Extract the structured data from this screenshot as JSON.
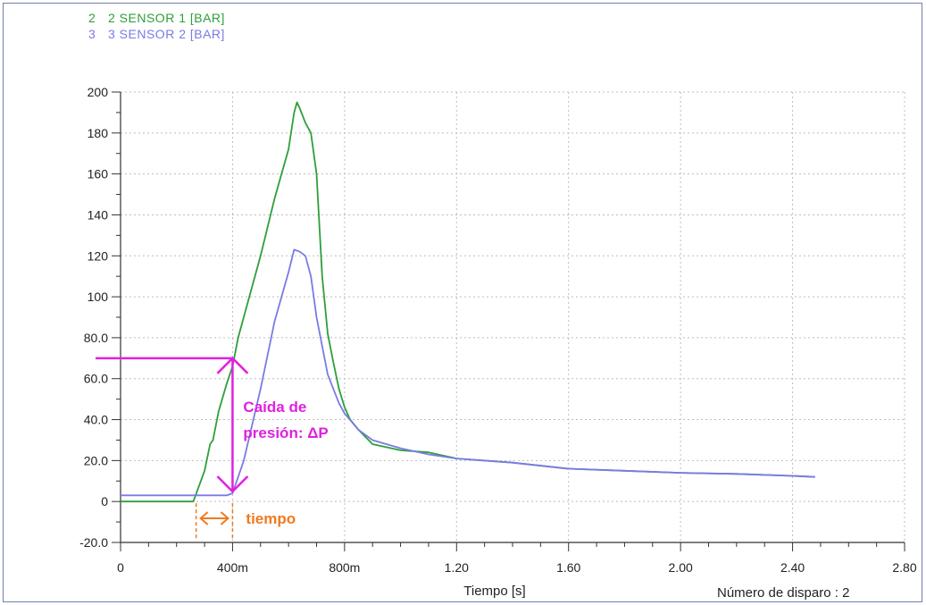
{
  "legend": [
    {
      "number": "2",
      "label": "2 SENSOR 1 [BAR]",
      "color": "#2e9e3a"
    },
    {
      "number": "3",
      "label": "3 SENSOR 2 [BAR]",
      "color": "#7a7ae6"
    }
  ],
  "footer": {
    "shot_label": "Número de disparo : 2"
  },
  "annotations": {
    "pressure_drop_line1": "Caída de",
    "pressure_drop_line2": "presión: ΔP",
    "time_label": "tiempo",
    "pressure_color": "#e020e0",
    "time_color": "#f07a20"
  },
  "chart_data": {
    "type": "line",
    "xlabel": "Tiempo [s]",
    "ylabel": "",
    "xlim": [
      0,
      2.8
    ],
    "ylim": [
      -20,
      200
    ],
    "grid": true,
    "x_ticks": [
      {
        "value": 0,
        "label": "0"
      },
      {
        "value": 0.4,
        "label": "400m"
      },
      {
        "value": 0.8,
        "label": "800m"
      },
      {
        "value": 1.2,
        "label": "1.20"
      },
      {
        "value": 1.6,
        "label": "1.60"
      },
      {
        "value": 2.0,
        "label": "2.00"
      },
      {
        "value": 2.4,
        "label": "2.40"
      },
      {
        "value": 2.8,
        "label": "2.80"
      }
    ],
    "y_ticks": [
      {
        "value": 200,
        "label": "200"
      },
      {
        "value": 180,
        "label": "180"
      },
      {
        "value": 160,
        "label": "160"
      },
      {
        "value": 140,
        "label": "140"
      },
      {
        "value": 120,
        "label": "120"
      },
      {
        "value": 100,
        "label": "100"
      },
      {
        "value": 80,
        "label": "80.0"
      },
      {
        "value": 60,
        "label": "60.0"
      },
      {
        "value": 40,
        "label": "40.0"
      },
      {
        "value": 20,
        "label": "20.0"
      },
      {
        "value": 0,
        "label": "0"
      },
      {
        "value": -20,
        "label": "-20.0"
      }
    ],
    "series": [
      {
        "name": "2 SENSOR 1 [BAR]",
        "color": "#2e9e3a",
        "x": [
          0,
          0.1,
          0.15,
          0.2,
          0.26,
          0.3,
          0.32,
          0.33,
          0.35,
          0.38,
          0.4,
          0.42,
          0.45,
          0.5,
          0.55,
          0.6,
          0.62,
          0.63,
          0.64,
          0.66,
          0.68,
          0.7,
          0.72,
          0.74,
          0.76,
          0.78,
          0.8,
          0.82,
          0.85,
          0.9,
          1.0,
          1.1,
          1.2,
          1.4,
          1.6,
          1.8,
          2.0,
          2.2,
          2.4,
          2.48
        ],
        "y": [
          0,
          0,
          0,
          0,
          0,
          15,
          28,
          30,
          44,
          58,
          66,
          80,
          95,
          120,
          148,
          172,
          190,
          195,
          192,
          185,
          180,
          160,
          110,
          82,
          68,
          55,
          46,
          40,
          35,
          28,
          25,
          24,
          21,
          19,
          16,
          15,
          14,
          13.5,
          12.5,
          12
        ]
      },
      {
        "name": "3 SENSOR 2 [BAR]",
        "color": "#7a7ae6",
        "x": [
          0,
          0.1,
          0.2,
          0.3,
          0.38,
          0.4,
          0.44,
          0.5,
          0.55,
          0.6,
          0.62,
          0.64,
          0.66,
          0.68,
          0.7,
          0.74,
          0.78,
          0.8,
          0.85,
          0.9,
          1.0,
          1.1,
          1.2,
          1.4,
          1.6,
          1.8,
          2.0,
          2.2,
          2.4,
          2.48
        ],
        "y": [
          3,
          3,
          3,
          3,
          3,
          4,
          20,
          55,
          88,
          112,
          123,
          122,
          120,
          110,
          90,
          62,
          48,
          43,
          35,
          30,
          26,
          23,
          21,
          19,
          16,
          15,
          14,
          13.5,
          12.5,
          12
        ]
      }
    ],
    "pressure_drop": {
      "x": 0.4,
      "y_top": 70,
      "y_bottom": 4
    },
    "time_interval": {
      "x_start": 0.27,
      "x_end": 0.4
    }
  }
}
